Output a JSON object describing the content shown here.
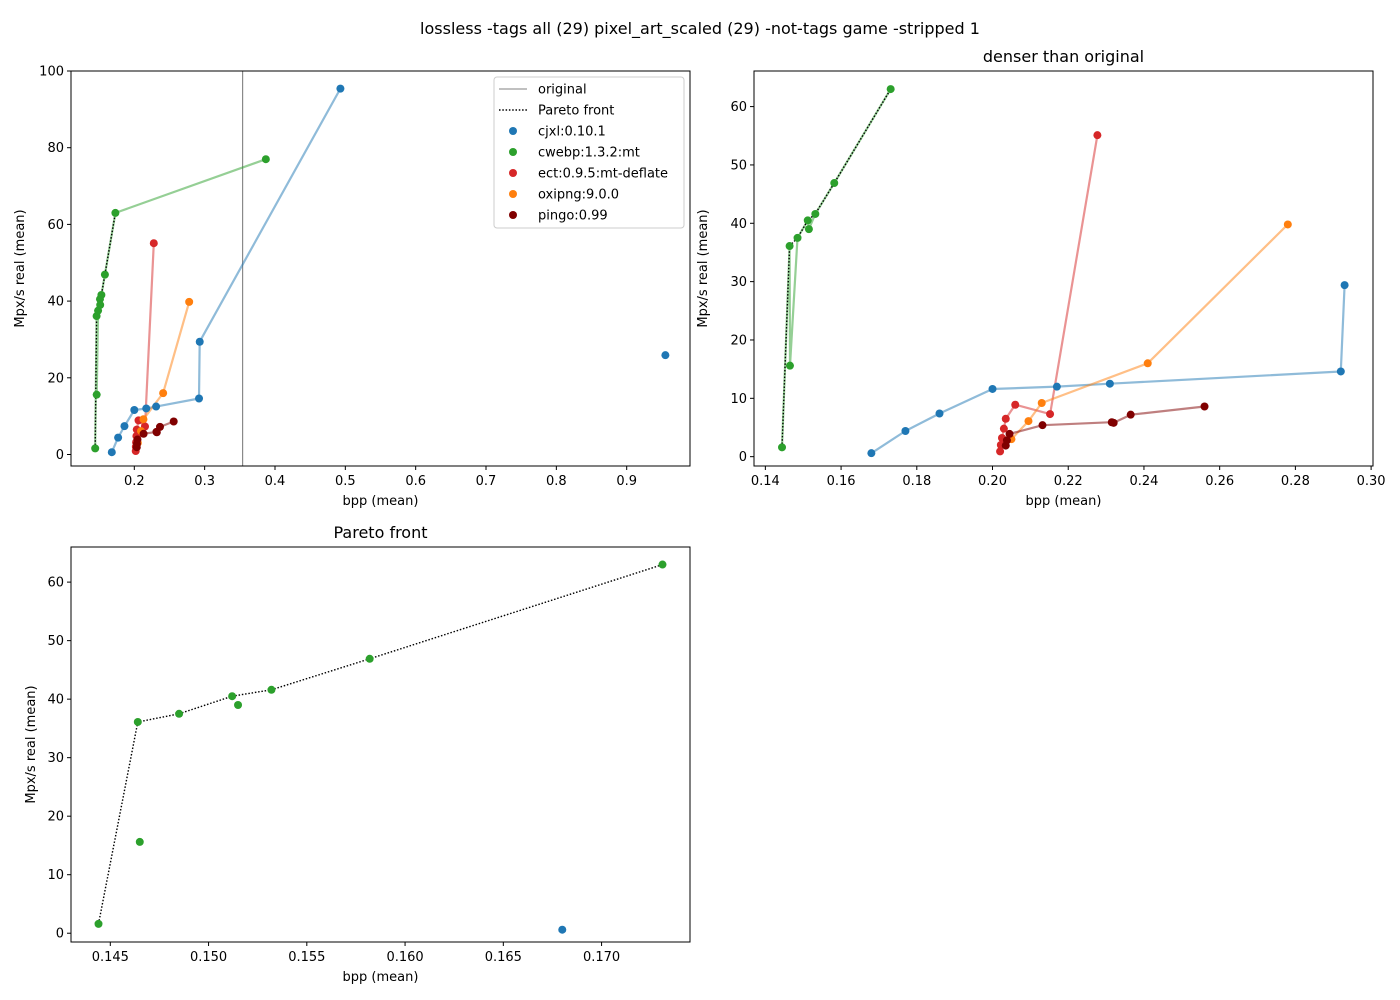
{
  "suptitle": "lossless -tags all (29) pixel_art_scaled (29) -not-tags game -stripped 1",
  "colors": {
    "cjxl:0.10.1": "#1f77b4",
    "cwebp:1.3.2:mt": "#2ca02c",
    "ect:0.9.5:mt-deflate": "#d62728",
    "oxipng:9.0.0": "#ff7f0e",
    "pingo:0.99": "#800000",
    "original": "#808080",
    "pareto": "#000000"
  },
  "chart_data": [
    {
      "type": "scatter",
      "title": "",
      "xlabel": "bpp (mean)",
      "ylabel": "Mpx/s real (mean)",
      "xlim": [
        0.11,
        0.99
      ],
      "ylim": [
        -3,
        100
      ],
      "xticks": [
        "0.2",
        "0.3",
        "0.4",
        "0.5",
        "0.6",
        "0.7",
        "0.8",
        "0.9"
      ],
      "yticks": [
        "0",
        "20",
        "40",
        "60",
        "80",
        "100"
      ],
      "grid": false,
      "legend": {
        "placement": "top-right",
        "entries": [
          "original",
          "Pareto front",
          "cjxl:0.10.1",
          "cwebp:1.3.2:mt",
          "ect:0.9.5:mt-deflate",
          "oxipng:9.0.0",
          "pingo:0.99"
        ]
      },
      "original_x": 0.354,
      "series": [
        {
          "name": "cjxl:0.10.1",
          "line": true,
          "x": [
            0.168,
            0.177,
            0.186,
            0.2,
            0.217,
            0.231,
            0.292,
            0.293,
            0.493
          ],
          "y": [
            0.6,
            4.4,
            7.4,
            11.6,
            12.0,
            12.5,
            14.6,
            29.4,
            95.4
          ],
          "extra_x": [
            0.955
          ],
          "extra_y": [
            25.9
          ]
        },
        {
          "name": "cwebp:1.3.2:mt",
          "line": true,
          "x": [
            0.1444,
            0.1464,
            0.1465,
            0.1485,
            0.1512,
            0.1515,
            0.1532,
            0.1582,
            0.1731,
            0.387
          ],
          "y": [
            1.6,
            36.1,
            15.6,
            37.5,
            40.5,
            39.0,
            41.6,
            46.9,
            63.0,
            77.0
          ]
        },
        {
          "name": "ect:0.9.5:mt-deflate",
          "line": true,
          "x": [
            0.202,
            0.2022,
            0.2025,
            0.203,
            0.2035,
            0.206,
            0.2152,
            0.2277
          ],
          "y": [
            0.9,
            2.0,
            3.2,
            4.8,
            6.5,
            8.9,
            7.3,
            55.1
          ]
        },
        {
          "name": "oxipng:9.0.0",
          "line": true,
          "x": [
            0.205,
            0.2095,
            0.213,
            0.241,
            0.278
          ],
          "y": [
            3.0,
            6.1,
            9.2,
            16.0,
            39.8
          ]
        },
        {
          "name": "pingo:0.99",
          "line": true,
          "x": [
            0.2035,
            0.2038,
            0.2045,
            0.2132,
            0.2315,
            0.232,
            0.2365,
            0.256
          ],
          "y": [
            1.9,
            2.8,
            3.9,
            5.4,
            5.9,
            5.8,
            7.2,
            8.6
          ]
        }
      ],
      "pareto": {
        "x": [
          0.1444,
          0.1464,
          0.1485,
          0.1512,
          0.1532,
          0.1582,
          0.1731
        ],
        "y": [
          1.6,
          36.1,
          37.5,
          40.5,
          41.6,
          46.9,
          63.0
        ]
      }
    },
    {
      "type": "scatter",
      "title": "denser than original",
      "xlabel": "bpp (mean)",
      "ylabel": "Mpx/s real (mean)",
      "xlim": [
        0.137,
        0.3005
      ],
      "ylim": [
        -1.6,
        66.1
      ],
      "xticks": [
        "0.14",
        "0.16",
        "0.18",
        "0.20",
        "0.22",
        "0.24",
        "0.26",
        "0.28",
        "0.30"
      ],
      "yticks": [
        "0",
        "10",
        "20",
        "30",
        "40",
        "50",
        "60"
      ],
      "grid": false,
      "series": [
        {
          "name": "cjxl:0.10.1",
          "line": true,
          "x": [
            0.168,
            0.177,
            0.186,
            0.2,
            0.217,
            0.231,
            0.292,
            0.293
          ],
          "y": [
            0.6,
            4.4,
            7.4,
            11.6,
            12.0,
            12.5,
            14.6,
            29.4
          ]
        },
        {
          "name": "cwebp:1.3.2:mt",
          "line": true,
          "x": [
            0.1444,
            0.1464,
            0.1465,
            0.1485,
            0.1512,
            0.1515,
            0.1532,
            0.1582,
            0.1731
          ],
          "y": [
            1.6,
            36.1,
            15.6,
            37.5,
            40.5,
            39.0,
            41.6,
            46.9,
            63.0
          ]
        },
        {
          "name": "ect:0.9.5:mt-deflate",
          "line": true,
          "x": [
            0.202,
            0.2022,
            0.2025,
            0.203,
            0.2035,
            0.206,
            0.2152,
            0.2277
          ],
          "y": [
            0.9,
            2.0,
            3.2,
            4.8,
            6.5,
            8.9,
            7.3,
            55.1
          ]
        },
        {
          "name": "oxipng:9.0.0",
          "line": true,
          "x": [
            0.205,
            0.2095,
            0.213,
            0.241,
            0.278
          ],
          "y": [
            3.0,
            6.1,
            9.2,
            16.0,
            39.8
          ]
        },
        {
          "name": "pingo:0.99",
          "line": true,
          "x": [
            0.2035,
            0.2038,
            0.2045,
            0.2132,
            0.2315,
            0.232,
            0.2365,
            0.256
          ],
          "y": [
            1.9,
            2.8,
            3.9,
            5.4,
            5.9,
            5.8,
            7.2,
            8.6
          ]
        }
      ],
      "pareto": {
        "x": [
          0.1444,
          0.1464,
          0.1485,
          0.1512,
          0.1532,
          0.1582,
          0.1731
        ],
        "y": [
          1.6,
          36.1,
          37.5,
          40.5,
          41.6,
          46.9,
          63.0
        ]
      }
    },
    {
      "type": "scatter",
      "title": "Pareto front",
      "xlabel": "bpp (mean)",
      "ylabel": "Mpx/s real (mean)",
      "xlim": [
        0.143,
        0.1745
      ],
      "ylim": [
        -1.5,
        66.0
      ],
      "xticks": [
        "0.145",
        "0.150",
        "0.155",
        "0.160",
        "0.165",
        "0.170"
      ],
      "yticks": [
        "0",
        "10",
        "20",
        "30",
        "40",
        "50",
        "60"
      ],
      "grid": false,
      "series": [
        {
          "name": "cwebp:1.3.2:mt",
          "line": false,
          "x": [
            0.1444,
            0.1464,
            0.1465,
            0.1485,
            0.1512,
            0.1515,
            0.1532,
            0.1582,
            0.1731
          ],
          "y": [
            1.6,
            36.1,
            15.6,
            37.5,
            40.5,
            39.0,
            41.6,
            46.9,
            63.0
          ]
        },
        {
          "name": "cjxl:0.10.1",
          "line": false,
          "x": [
            0.168
          ],
          "y": [
            0.6
          ]
        }
      ],
      "pareto": {
        "x": [
          0.1444,
          0.1464,
          0.1485,
          0.1512,
          0.1532,
          0.1582,
          0.1731
        ],
        "y": [
          1.6,
          36.1,
          37.5,
          40.5,
          41.6,
          46.9,
          63.0
        ]
      }
    }
  ]
}
